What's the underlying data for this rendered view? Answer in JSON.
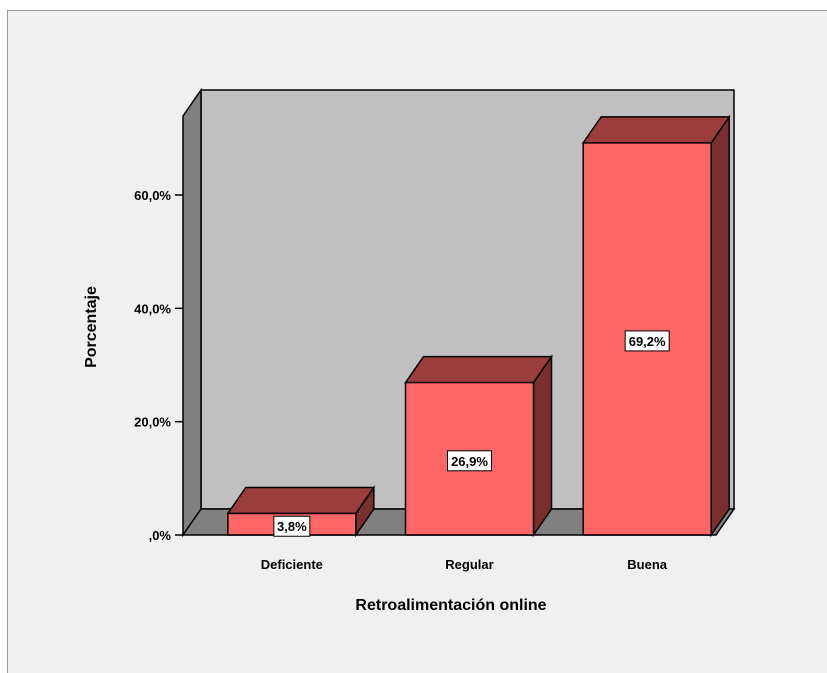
{
  "chart_data": {
    "type": "bar",
    "categories": [
      "Deficiente",
      "Regular",
      "Buena"
    ],
    "values": [
      3.8,
      26.9,
      69.2
    ],
    "data_labels": [
      "3,8%",
      "26,9%",
      "69,2%"
    ],
    "xlabel": "Retroalimentación online",
    "ylabel": "Porcentaje",
    "ylim": [
      0,
      60
    ],
    "yticks": [
      {
        "value": 0,
        "label": ",0%"
      },
      {
        "value": 20,
        "label": "20,0%"
      },
      {
        "value": 40,
        "label": "40,0%"
      },
      {
        "value": 60,
        "label": "60,0%"
      }
    ],
    "style": "3d",
    "colors": {
      "bar_front": "#ff6666",
      "bar_top": "#9b3d3d",
      "bar_side": "#7a2f2f",
      "back_wall": "#c0c0c0",
      "side_wall": "#808080",
      "floor": "#808080",
      "background": "#f0f0f0"
    }
  }
}
